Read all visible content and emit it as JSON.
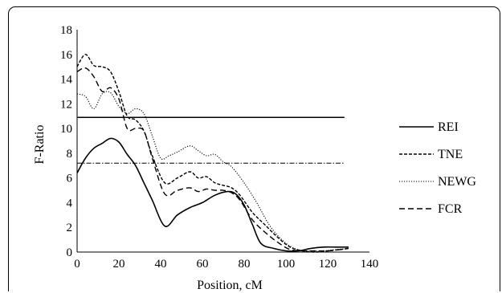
{
  "chart_data": {
    "type": "line",
    "title": "",
    "xlabel": "Position, cM",
    "ylabel": "F-Ratio",
    "xlim": [
      0,
      140
    ],
    "ylim": [
      0,
      18
    ],
    "xticks": [
      0,
      20,
      40,
      60,
      80,
      100,
      120,
      140
    ],
    "yticks": [
      0,
      2,
      4,
      6,
      8,
      10,
      12,
      14,
      16,
      18
    ],
    "grid": false,
    "legend_position": "right",
    "series": [
      {
        "name": "REI",
        "style": "solid",
        "color": "#000000",
        "x": [
          0,
          4,
          8,
          12,
          16,
          20,
          24,
          28,
          32,
          36,
          42,
          48,
          54,
          60,
          66,
          72,
          76,
          80,
          84,
          88,
          94,
          100,
          106,
          112,
          118,
          124,
          130
        ],
        "y": [
          6.4,
          7.6,
          8.4,
          8.8,
          9.2,
          8.9,
          7.9,
          7.0,
          5.6,
          4.2,
          2.1,
          3.0,
          3.6,
          4.0,
          4.6,
          4.9,
          4.7,
          3.8,
          2.2,
          0.7,
          0.3,
          0.1,
          0.1,
          0.3,
          0.4,
          0.4,
          0.4
        ]
      },
      {
        "name": "TNE",
        "style": "dashed",
        "color": "#000000",
        "x": [
          0,
          4,
          8,
          12,
          16,
          20,
          24,
          28,
          32,
          36,
          42,
          48,
          54,
          58,
          62,
          66,
          70,
          74,
          78,
          84,
          90,
          96,
          102,
          108,
          114,
          120,
          126,
          130
        ],
        "y": [
          15.0,
          16.0,
          15.1,
          15.0,
          14.6,
          13.0,
          11.0,
          10.7,
          9.8,
          7.8,
          5.6,
          6.0,
          6.5,
          6.0,
          6.1,
          5.6,
          5.4,
          5.2,
          4.6,
          3.2,
          2.2,
          1.2,
          0.4,
          0.1,
          0.0,
          0.1,
          0.2,
          0.3
        ]
      },
      {
        "name": "NEWG",
        "style": "dotted",
        "color": "#000000",
        "x": [
          0,
          4,
          8,
          12,
          16,
          20,
          24,
          28,
          32,
          36,
          40,
          44,
          48,
          54,
          58,
          62,
          66,
          70,
          74,
          80,
          86,
          92,
          98,
          104,
          110,
          118,
          124,
          130
        ],
        "y": [
          12.8,
          12.6,
          11.6,
          12.8,
          12.9,
          11.8,
          11.2,
          11.6,
          11.2,
          9.4,
          7.6,
          7.8,
          8.1,
          8.6,
          8.2,
          7.8,
          7.9,
          7.3,
          6.9,
          5.6,
          4.0,
          2.2,
          1.0,
          0.3,
          0.1,
          0.1,
          0.2,
          0.3
        ]
      },
      {
        "name": "FCR",
        "style": "long-dashed",
        "color": "#000000",
        "x": [
          0,
          4,
          8,
          12,
          16,
          20,
          24,
          28,
          32,
          36,
          42,
          48,
          54,
          58,
          62,
          66,
          70,
          74,
          78,
          84,
          90,
          96,
          102,
          108,
          114,
          120,
          126,
          130
        ],
        "y": [
          14.6,
          14.9,
          14.2,
          13.0,
          13.3,
          12.4,
          10.0,
          10.0,
          9.8,
          7.6,
          4.7,
          5.0,
          5.2,
          4.9,
          5.1,
          5.0,
          5.0,
          4.8,
          4.2,
          2.6,
          1.6,
          0.8,
          0.2,
          0.1,
          0.1,
          0.1,
          0.2,
          0.3
        ]
      }
    ],
    "reference_lines": [
      {
        "y": 10.9,
        "style": "solid"
      },
      {
        "y": 7.2,
        "style": "dash-dot"
      }
    ]
  }
}
